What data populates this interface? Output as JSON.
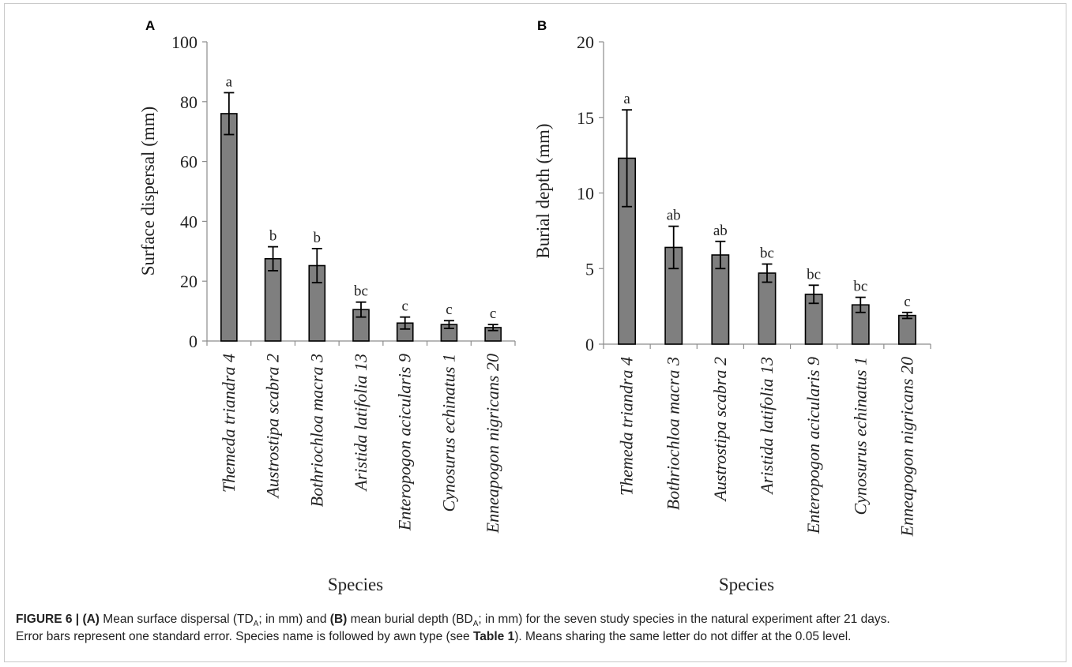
{
  "caption": {
    "label": "FIGURE 6 |",
    "part_a": "(A)",
    "text_1": "Mean surface dispersal (TD",
    "sub_a": "A",
    "text_2": "; in mm) and",
    "part_b": "(B)",
    "text_3": "mean burial depth (BD",
    "sub_b": "A",
    "text_4": "; in mm) for the seven study species in the natural experiment after 21 days.",
    "text_5": "Error bars represent one standard error. Species name is followed by awn type (see",
    "table_ref": "Table 1",
    "text_6": "). Means sharing the same letter do not differ at the 0.05 level."
  },
  "colors": {
    "bar": "#7f7f7f",
    "bar_stroke": "#000000",
    "axis": "#8c8c8c",
    "text": "#222222"
  },
  "chart_data": [
    {
      "panel": "A",
      "type": "bar",
      "xlabel": "Species",
      "ylabel": "Surface dispersal (mm)",
      "ylim": [
        0,
        100
      ],
      "yticks": [
        0,
        20,
        40,
        60,
        80,
        100
      ],
      "grid": false,
      "categories": [
        "Themeda triandra 4",
        "Austrostipa scabra 2",
        "Bothriochloa macra 3",
        "Aristida latifolia 13",
        "Enteropogon acicularis 9",
        "Cynosurus echinatus 1",
        "Enneapogon nigricans 20"
      ],
      "values": [
        76,
        27.5,
        25.2,
        10.5,
        6,
        5.5,
        4.5
      ],
      "errors": [
        7,
        4,
        5.7,
        2.5,
        2,
        1.3,
        1
      ],
      "letters": [
        "a",
        "b",
        "b",
        "bc",
        "c",
        "c",
        "c"
      ]
    },
    {
      "panel": "B",
      "type": "bar",
      "xlabel": "Species",
      "ylabel": "Burial depth (mm)",
      "ylim": [
        0,
        20
      ],
      "yticks": [
        0,
        5,
        10,
        15,
        20
      ],
      "grid": false,
      "categories": [
        "Themeda triandra 4",
        "Bothriochloa macra 3",
        "Austrostipa scabra 2",
        "Aristida latifolia 13",
        "Enteropogon acicularis 9",
        "Cynosurus echinatus 1",
        "Enneapogon nigricans 20"
      ],
      "values": [
        12.3,
        6.4,
        5.9,
        4.7,
        3.3,
        2.6,
        1.9
      ],
      "errors": [
        3.2,
        1.4,
        0.9,
        0.6,
        0.6,
        0.5,
        0.2
      ],
      "letters": [
        "a",
        "ab",
        "ab",
        "bc",
        "bc",
        "bc",
        "c"
      ]
    }
  ]
}
